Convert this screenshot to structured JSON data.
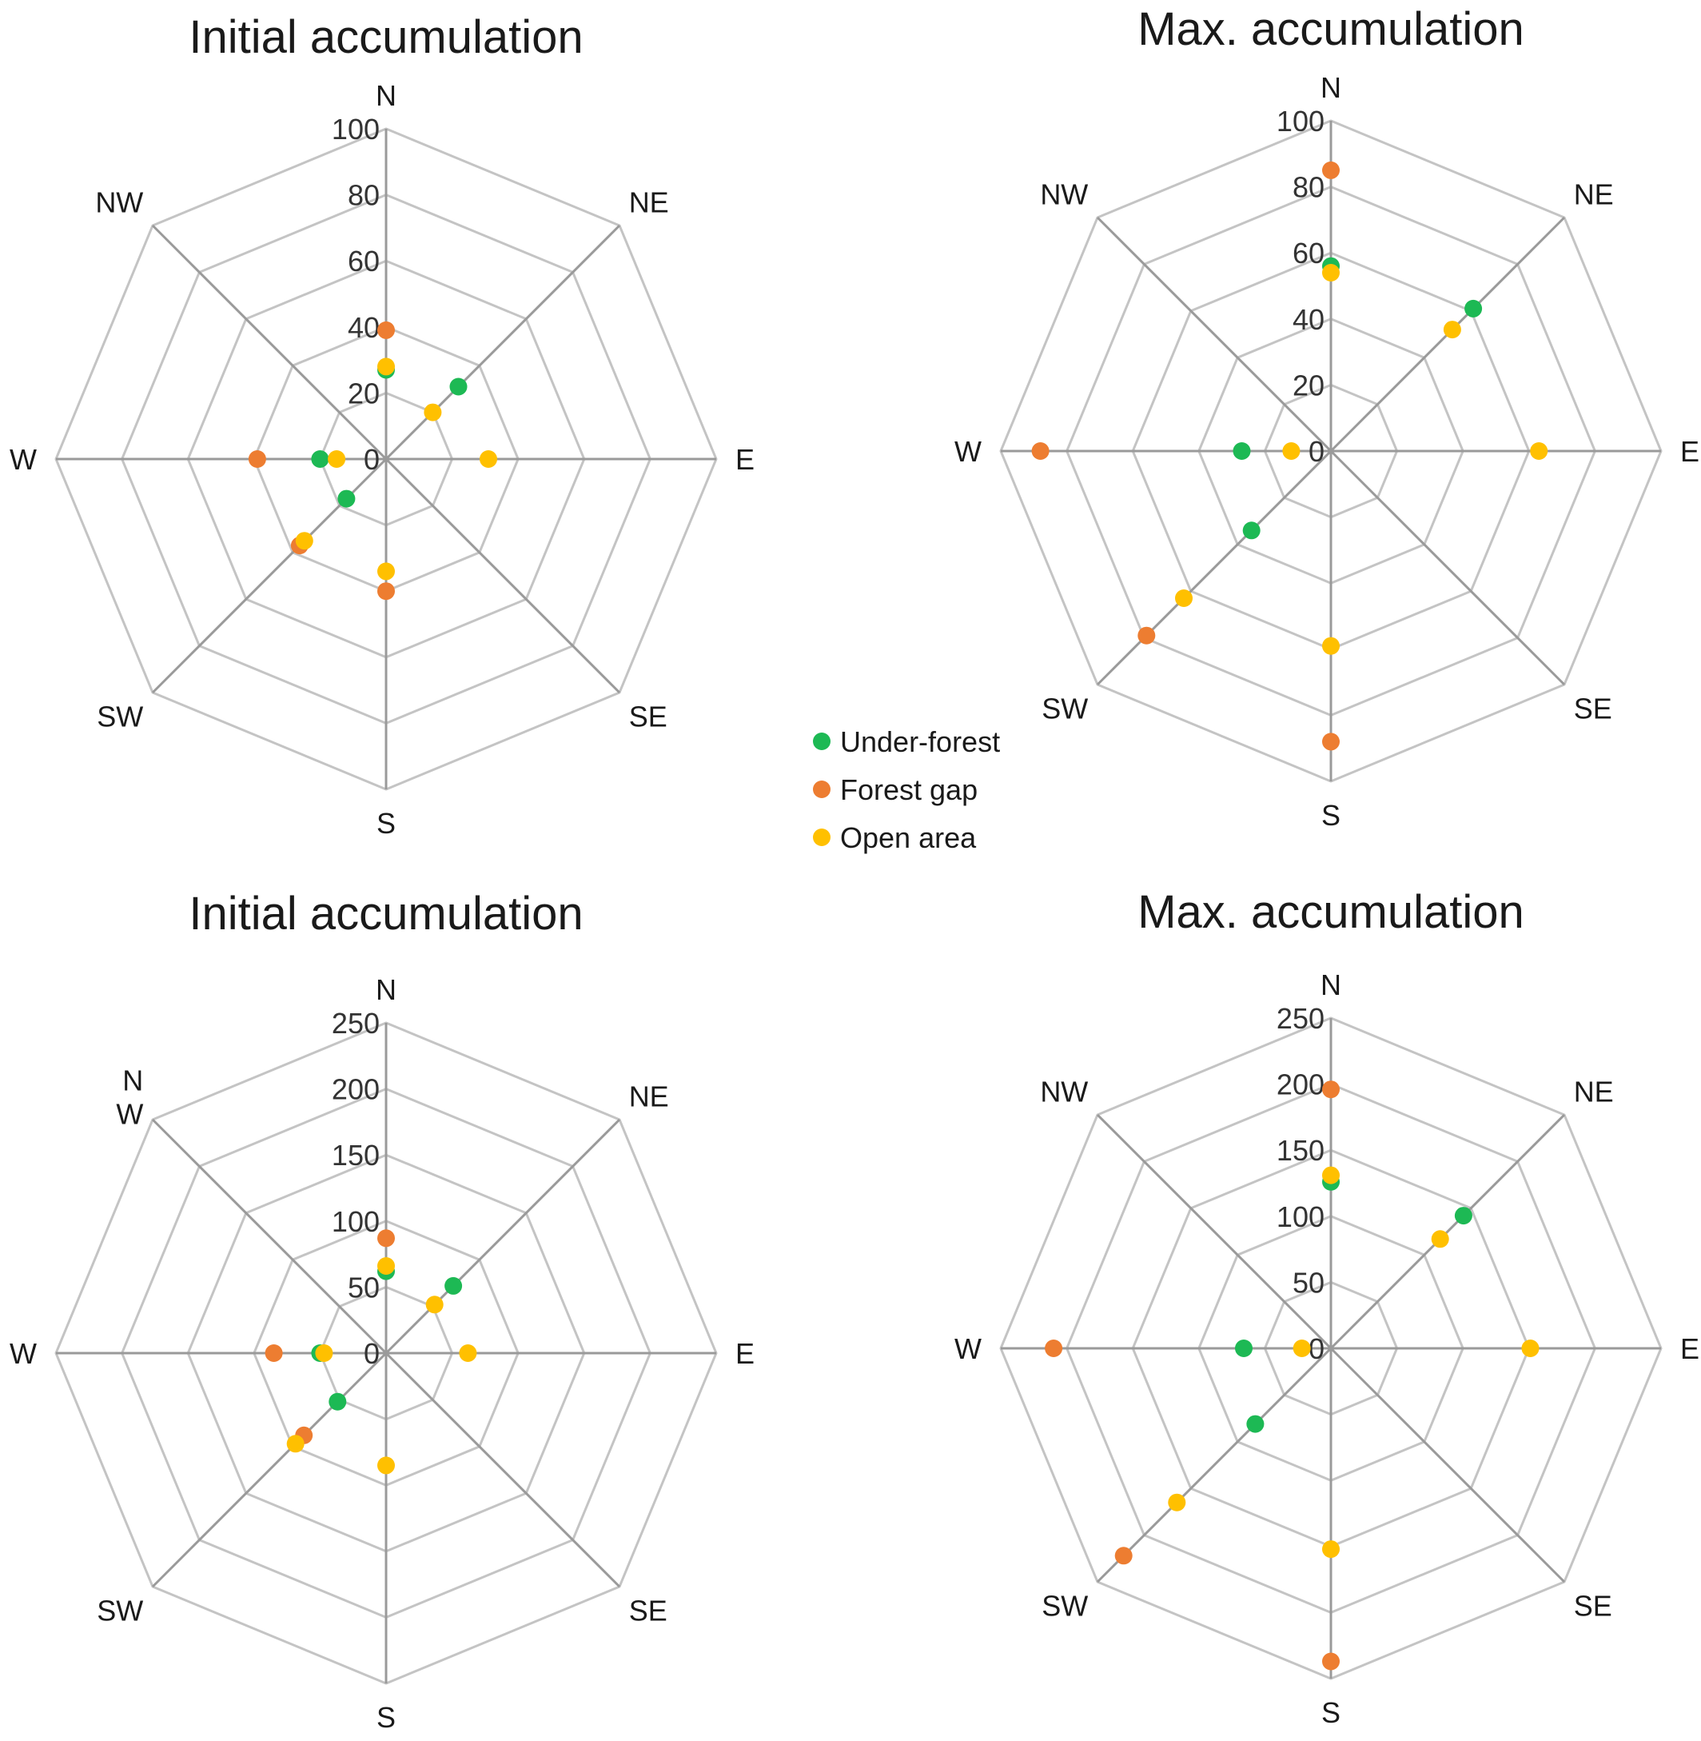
{
  "figure": {
    "background": "#ffffff",
    "legend": {
      "placement": "center",
      "items": [
        {
          "label": "Under-forest",
          "color": "#1db954"
        },
        {
          "label": "Forest gap",
          "color": "#ed7d31"
        },
        {
          "label": "Open area",
          "color": "#ffc000"
        }
      ]
    }
  },
  "chart_data": [
    {
      "type": "radar",
      "title": "Initial accumulation",
      "axes": [
        "N",
        "NE",
        "E",
        "SE",
        "S",
        "SW",
        "W",
        "NW"
      ],
      "rlim": [
        0,
        100
      ],
      "ticks": [
        "0",
        "20",
        "40",
        "60",
        "80",
        "100"
      ],
      "tick_values": [
        0,
        20,
        40,
        60,
        80,
        100
      ],
      "grid": true,
      "series": [
        {
          "name": "Under-forest",
          "color": "#1db954",
          "values": [
            27,
            31,
            null,
            null,
            null,
            17,
            20,
            null
          ]
        },
        {
          "name": "Forest gap",
          "color": "#ed7d31",
          "values": [
            39,
            null,
            null,
            null,
            40,
            37,
            39,
            null
          ]
        },
        {
          "name": "Open area",
          "color": "#ffc000",
          "values": [
            28,
            20,
            31,
            null,
            34,
            35,
            15,
            null
          ]
        }
      ]
    },
    {
      "type": "radar",
      "title": "Max. accumulation",
      "axes": [
        "N",
        "NE",
        "E",
        "SE",
        "S",
        "SW",
        "W",
        "NW"
      ],
      "rlim": [
        0,
        100
      ],
      "ticks": [
        "0",
        "20",
        "40",
        "60",
        "80",
        "100"
      ],
      "tick_values": [
        0,
        20,
        40,
        60,
        80,
        100
      ],
      "grid": true,
      "series": [
        {
          "name": "Under-forest",
          "color": "#1db954",
          "values": [
            56,
            61,
            null,
            null,
            null,
            34,
            27,
            null
          ]
        },
        {
          "name": "Forest gap",
          "color": "#ed7d31",
          "values": [
            85,
            null,
            null,
            null,
            88,
            79,
            88,
            null
          ]
        },
        {
          "name": "Open area",
          "color": "#ffc000",
          "values": [
            54,
            52,
            63,
            null,
            59,
            63,
            12,
            null
          ]
        }
      ]
    },
    {
      "type": "radar",
      "title": "Initial accumulation",
      "axes": [
        "N",
        "NE",
        "E",
        "SE",
        "S",
        "SW",
        "W",
        "NW"
      ],
      "axis_labels_display": [
        "N",
        "NE",
        "E",
        "SE",
        "S",
        "SW",
        "W",
        "N\nW"
      ],
      "rlim": [
        0,
        250
      ],
      "ticks": [
        "0",
        "50",
        "100",
        "150",
        "200",
        "250"
      ],
      "tick_values": [
        0,
        50,
        100,
        150,
        200,
        250
      ],
      "grid": true,
      "series": [
        {
          "name": "Under-forest",
          "color": "#1db954",
          "values": [
            62,
            72,
            null,
            null,
            null,
            52,
            50,
            null
          ]
        },
        {
          "name": "Forest gap",
          "color": "#ed7d31",
          "values": [
            87,
            null,
            null,
            null,
            null,
            88,
            85,
            null
          ]
        },
        {
          "name": "Open area",
          "color": "#ffc000",
          "values": [
            66,
            52,
            62,
            null,
            85,
            97,
            47,
            null
          ]
        }
      ]
    },
    {
      "type": "radar",
      "title": "Max. accumulation",
      "axes": [
        "N",
        "NE",
        "E",
        "SE",
        "S",
        "SW",
        "W",
        "NW"
      ],
      "rlim": [
        0,
        250
      ],
      "ticks": [
        "0",
        "50",
        "100",
        "150",
        "200",
        "250"
      ],
      "tick_values": [
        0,
        50,
        100,
        150,
        200,
        250
      ],
      "grid": true,
      "series": [
        {
          "name": "Under-forest",
          "color": "#1db954",
          "values": [
            126,
            142,
            null,
            null,
            null,
            81,
            66,
            null
          ]
        },
        {
          "name": "Forest gap",
          "color": "#ed7d31",
          "values": [
            196,
            null,
            null,
            null,
            237,
            222,
            210,
            null
          ]
        },
        {
          "name": "Open area",
          "color": "#ffc000",
          "values": [
            131,
            117,
            151,
            null,
            152,
            165,
            22,
            null
          ]
        }
      ]
    }
  ]
}
